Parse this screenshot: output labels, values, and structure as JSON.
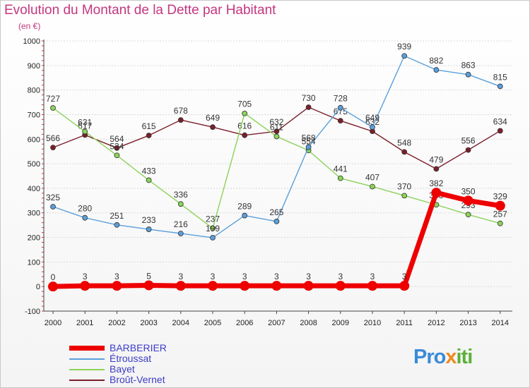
{
  "header": {
    "title": "Evolution du Montant de la Dette par Habitant",
    "subtitle": "(en €)"
  },
  "logo": {
    "text": "Proxiti",
    "parts": [
      "Pro",
      "x",
      "iti"
    ]
  },
  "colors": {
    "title": "#c4367f",
    "legend_text": "#3c3cc8",
    "grid": "#d9d9d9"
  },
  "chart_data": {
    "type": "line",
    "x": [
      "2000",
      "2001",
      "2002",
      "2003",
      "2004",
      "2005",
      "2006",
      "2007",
      "2008",
      "2009",
      "2010",
      "2011",
      "2012",
      "2013",
      "2014"
    ],
    "ylim": [
      -100,
      1000
    ],
    "yticks": [
      -100,
      0,
      100,
      200,
      300,
      400,
      500,
      600,
      700,
      800,
      900,
      1000
    ],
    "grid": "horizontal",
    "legend_position": "bottom-left",
    "series": [
      {
        "name": "Broût-Vernet",
        "color": "#7a1f2b",
        "width": 1.4,
        "marker": 3.5,
        "values": [
          566,
          617,
          564,
          615,
          678,
          649,
          616,
          632,
          730,
          675,
          632,
          548,
          479,
          556,
          634
        ]
      },
      {
        "name": "Bayet",
        "color": "#8cd35a",
        "width": 1.4,
        "marker": 3.5,
        "values": [
          727,
          631,
          534,
          433,
          336,
          237,
          705,
          611,
          554,
          441,
          407,
          370,
          333,
          293,
          257
        ]
      },
      {
        "name": "Étroussat",
        "color": "#5a9fdb",
        "width": 1.4,
        "marker": 3.5,
        "values": [
          325,
          280,
          251,
          233,
          216,
          199,
          289,
          265,
          568,
          728,
          649,
          939,
          882,
          863,
          815
        ]
      },
      {
        "name": "BARBERIER",
        "color": "#ee0000",
        "width": 7,
        "marker": 7,
        "values": [
          0,
          3,
          3,
          5,
          3,
          3,
          3,
          3,
          3,
          3,
          3,
          3,
          382,
          350,
          329
        ]
      }
    ],
    "legend_order": [
      "BARBERIER",
      "Étroussat",
      "Bayet",
      "Broût-Vernet"
    ]
  }
}
